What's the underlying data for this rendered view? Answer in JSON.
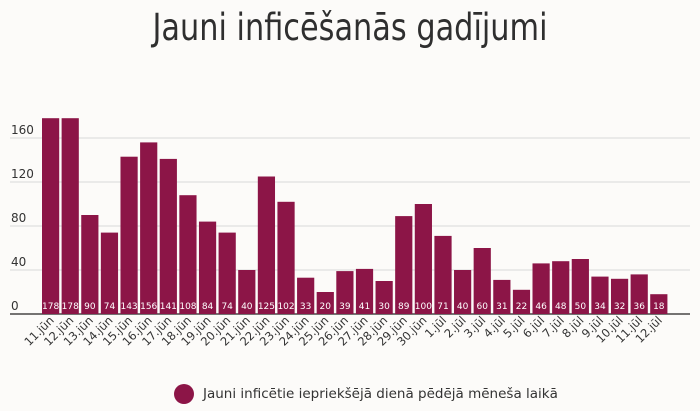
{
  "chart_data": {
    "type": "bar",
    "title": "Jauni inficēšanās gadījumi",
    "xlabel": "",
    "ylabel": "",
    "categories": [
      "11.jūn",
      "12.jūn",
      "13.jūn",
      "14.jūn",
      "15.jūn",
      "16.jūn",
      "17.jūn",
      "18.jūn",
      "19.jūn",
      "20.jūn",
      "21.jūn",
      "22.jūn",
      "23.jūn",
      "24.jūn",
      "25.jūn",
      "26.jūn",
      "27.jūn",
      "28.jūn",
      "29.jūn",
      "30.jūn",
      "1.jūl",
      "2.jūl",
      "3.jūl",
      "4.jūl",
      "5.jūl",
      "6.jūl",
      "7.jūl",
      "8.jūl",
      "9.jūl",
      "10.jūl",
      "11.jūl",
      "12.jūl"
    ],
    "series": [
      {
        "name": "Jauni inficētie iepriekšējā dienā pēdējā mēneša laikā",
        "color": "#8c1547",
        "values": [
          178,
          178,
          90,
          74,
          143,
          156,
          141,
          108,
          84,
          74,
          40,
          125,
          102,
          33,
          20,
          39,
          41,
          30,
          89,
          100,
          71,
          40,
          60,
          31,
          22,
          46,
          48,
          50,
          34,
          32,
          36,
          18
        ]
      }
    ],
    "ylim": [
      0,
      200
    ],
    "yticks": [
      0,
      40,
      80,
      120,
      160
    ],
    "grid": true,
    "data_labels": true,
    "legend_position": "bottom"
  }
}
